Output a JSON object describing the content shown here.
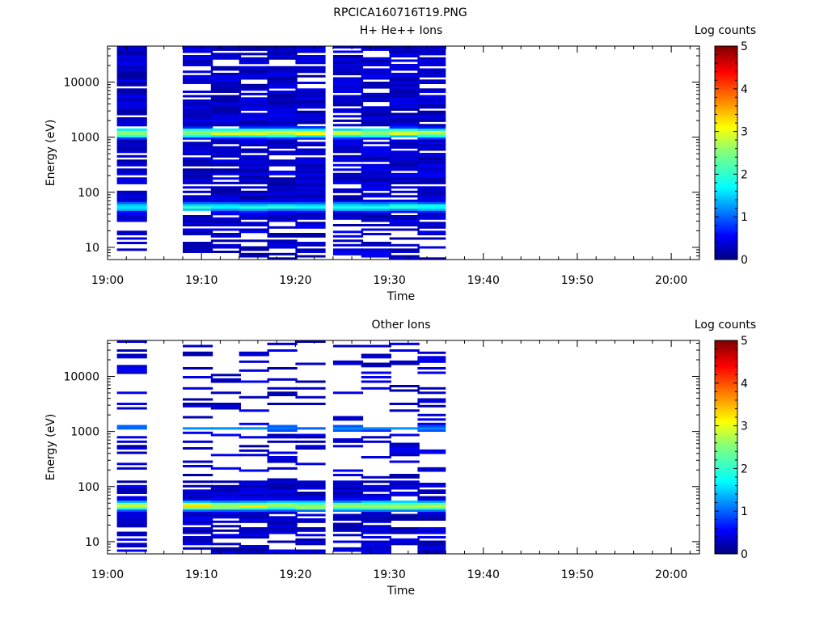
{
  "figure_title": "RPCICA160716T19.PNG",
  "chart_data": [
    {
      "type": "heatmap",
      "title": "H+ He++ Ions",
      "xlabel": "Time",
      "ylabel": "Energy (eV)",
      "x_ticks": [
        "19:00",
        "19:10",
        "19:20",
        "19:30",
        "19:40",
        "19:50",
        "20:00"
      ],
      "xlim": [
        "19:00",
        "20:03"
      ],
      "y_scale": "log",
      "y_ticks": [
        "10",
        "100",
        "1000",
        "10000"
      ],
      "ylim": [
        6,
        45000
      ],
      "colorbar": {
        "label": "Log counts",
        "range": [
          0,
          5
        ],
        "ticks": [
          "0",
          "1",
          "2",
          "3",
          "4",
          "5"
        ]
      },
      "colormap": [
        "#00007f",
        "#0000ff",
        "#007fff",
        "#00ffff",
        "#7fff7f",
        "#ffff00",
        "#ff7f00",
        "#ff0000",
        "#7f0000"
      ],
      "time_columns": [
        "19:01",
        "19:08",
        "19:11",
        "19:14",
        "19:17",
        "19:20",
        "19:24",
        "19:27",
        "19:30",
        "19:33"
      ],
      "column_duration_min": 3.2,
      "energy_range_eV": [
        6,
        45000
      ],
      "energy_bins": 96,
      "dominant_bands": [
        {
          "energy_eV": 1200,
          "peak_log_counts": 3.1
        },
        {
          "energy_eV": 55,
          "peak_log_counts": 2.2
        }
      ],
      "data_gap": [
        "19:04",
        "19:08"
      ],
      "data_end": "19:36"
    },
    {
      "type": "heatmap",
      "title": "Other Ions",
      "xlabel": "Time",
      "ylabel": "Energy (eV)",
      "x_ticks": [
        "19:00",
        "19:10",
        "19:20",
        "19:30",
        "19:40",
        "19:50",
        "20:00"
      ],
      "xlim": [
        "19:00",
        "20:03"
      ],
      "y_scale": "log",
      "y_ticks": [
        "10",
        "100",
        "1000",
        "10000"
      ],
      "ylim": [
        6,
        45000
      ],
      "colorbar": {
        "label": "Log counts",
        "range": [
          0,
          5
        ],
        "ticks": [
          "0",
          "1",
          "2",
          "3",
          "4",
          "5"
        ]
      },
      "colormap": [
        "#00007f",
        "#0000ff",
        "#007fff",
        "#00ffff",
        "#7fff7f",
        "#ffff00",
        "#ff7f00",
        "#ff0000",
        "#7f0000"
      ],
      "time_columns": [
        "19:01",
        "19:08",
        "19:11",
        "19:14",
        "19:17",
        "19:20",
        "19:24",
        "19:27",
        "19:30",
        "19:33"
      ],
      "column_duration_min": 3.2,
      "energy_range_eV": [
        6,
        45000
      ],
      "energy_bins": 96,
      "dominant_bands": [
        {
          "energy_eV": 45,
          "peak_log_counts": 3.2
        },
        {
          "energy_eV": 1150,
          "peak_log_counts": 1.3
        }
      ],
      "data_gap": [
        "19:04",
        "19:08"
      ],
      "data_end": "19:36"
    }
  ]
}
